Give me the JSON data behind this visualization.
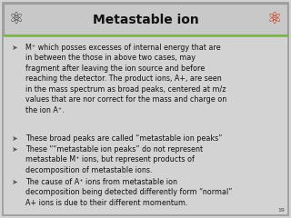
{
  "title": "Metastable ion",
  "title_fontsize": 10,
  "slide_bg": "#d3d3d3",
  "title_bar_bg": "#c8c8c8",
  "border_color": "#999999",
  "accent_line_color": "#7ab648",
  "text_color": "#111111",
  "page_number": "19",
  "bullet_points": [
    "M⁺ which posses excesses of internal energy that are\nin between the those in above two cases, may\nfragment after leaving the ion source and before\nreaching the detector. The product ions, A+, are seen\nin the mass spectrum as broad peaks, centered at m/z\nvalues that are nor correct for the mass and charge on\nthe ion A⁺.",
    "These broad peaks are called “metastable ion peaks”",
    "These ““metastable ion peaks” do not represent\nmetastable M⁺ ions, but represent products of\ndecomposition of metastable ions.",
    "The cause of A⁺ ions from metastable ion\ndecomposition being detected differently form “normal”\nA+ ions is due to their different momentum."
  ],
  "font_size": 5.8
}
